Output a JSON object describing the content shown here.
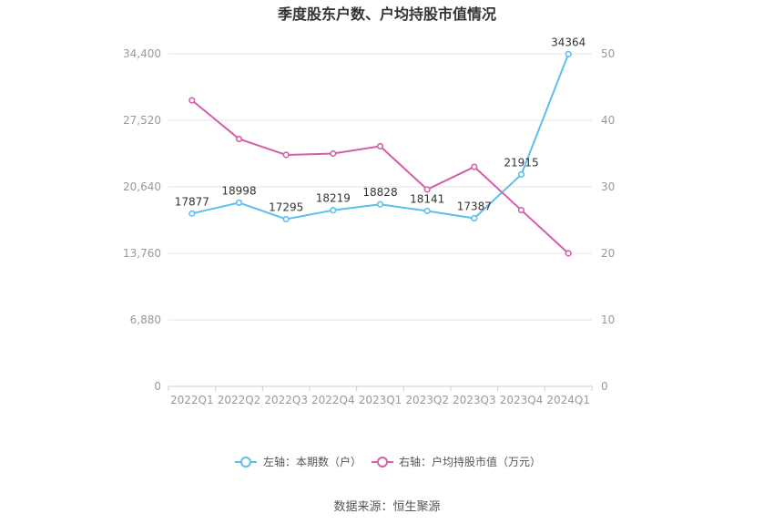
{
  "title": "季度股东户数、户均持股市值情况",
  "source": "数据来源：恒生聚源",
  "chart_data": {
    "type": "line",
    "categories": [
      "2022Q1",
      "2022Q2",
      "2022Q3",
      "2022Q4",
      "2023Q1",
      "2023Q2",
      "2023Q3",
      "2023Q4",
      "2024Q1"
    ],
    "left_axis": {
      "ticks": [
        "0",
        "6,880",
        "13,760",
        "20,640",
        "27,520",
        "34,400"
      ],
      "ylim": [
        0,
        34400
      ]
    },
    "right_axis": {
      "ticks": [
        "0",
        "10",
        "20",
        "30",
        "40",
        "50"
      ],
      "ylim": [
        0,
        50
      ]
    },
    "series": [
      {
        "name": "左轴：本期数（户）",
        "axis": "left",
        "color": "#5bc0eb",
        "values": [
          17877,
          18998,
          17295,
          18219,
          18828,
          18141,
          17387,
          21915,
          34364
        ],
        "labels": [
          "17877",
          "18998",
          "17295",
          "18219",
          "18828",
          "18141",
          "17387",
          "21915",
          "34364"
        ]
      },
      {
        "name": "右轴：户均持股市值（万元）",
        "axis": "right",
        "color": "#d35fa8",
        "values": [
          43.0,
          37.2,
          34.8,
          35.0,
          36.1,
          29.6,
          33.0,
          26.5,
          20.0
        ]
      }
    ],
    "grid": true,
    "legend": "bottom-center"
  },
  "colors": {
    "grid": "#e6e6e6",
    "axis_text": "#999999",
    "label_text": "#333333"
  }
}
